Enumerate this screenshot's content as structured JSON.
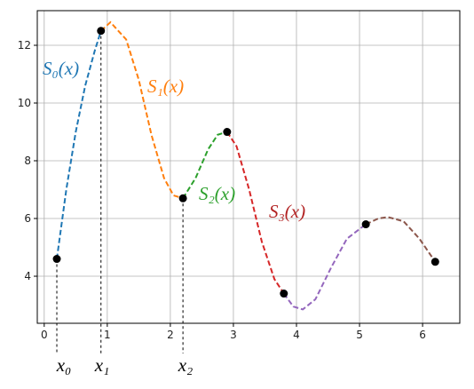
{
  "chart_data": {
    "type": "spline",
    "xlim": [
      -0.11,
      6.59
    ],
    "ylim": [
      2.37,
      13.2
    ],
    "xticks": [
      0,
      1,
      2,
      3,
      4,
      5,
      6
    ],
    "yticks": [
      4,
      6,
      8,
      10,
      12
    ],
    "grid": true,
    "points": {
      "color": "#000000",
      "x": [
        0.2,
        0.9,
        2.2,
        2.9,
        3.8,
        5.1,
        6.2
      ],
      "values": [
        4.6,
        12.5,
        6.7,
        9.0,
        3.4,
        5.8,
        4.5
      ]
    },
    "series": [
      {
        "color": "#1f77b4",
        "x": [
          0.2,
          0.35,
          0.5,
          0.65,
          0.8,
          0.9
        ],
        "values": [
          4.6,
          7.0,
          9.0,
          10.6,
          11.8,
          12.5
        ]
      },
      {
        "color": "#ff7f0e",
        "x": [
          0.9,
          1.05,
          1.3,
          1.5,
          1.7,
          1.9,
          2.05,
          2.2
        ],
        "values": [
          12.5,
          12.8,
          12.2,
          10.8,
          8.9,
          7.4,
          6.8,
          6.7
        ]
      },
      {
        "color": "#2ca02c",
        "x": [
          2.2,
          2.4,
          2.6,
          2.75,
          2.9
        ],
        "values": [
          6.7,
          7.4,
          8.4,
          8.9,
          9.0
        ]
      },
      {
        "color": "#d62728",
        "x": [
          2.9,
          3.05,
          3.25,
          3.45,
          3.65,
          3.8
        ],
        "values": [
          9.0,
          8.5,
          7.0,
          5.2,
          3.9,
          3.4
        ]
      },
      {
        "color": "#9467bd",
        "x": [
          3.8,
          3.95,
          4.1,
          4.3,
          4.55,
          4.8,
          5.1
        ],
        "values": [
          3.4,
          2.95,
          2.85,
          3.2,
          4.3,
          5.3,
          5.8
        ]
      },
      {
        "color": "#8c564b",
        "x": [
          5.1,
          5.3,
          5.45,
          5.7,
          5.95,
          6.2
        ],
        "values": [
          5.8,
          6.0,
          6.05,
          5.9,
          5.3,
          4.5
        ]
      }
    ],
    "annotations": [
      {
        "text": "S₀(x)",
        "color": "#1f77b4"
      },
      {
        "text": "S₁(x)",
        "color": "#ff7f0e"
      },
      {
        "text": "S₂(x)",
        "color": "#2ca02c"
      },
      {
        "text": "S₃(x)",
        "color": "#b22222"
      }
    ],
    "knot_labels": [
      "x₀",
      "x₁",
      "x₂"
    ]
  }
}
